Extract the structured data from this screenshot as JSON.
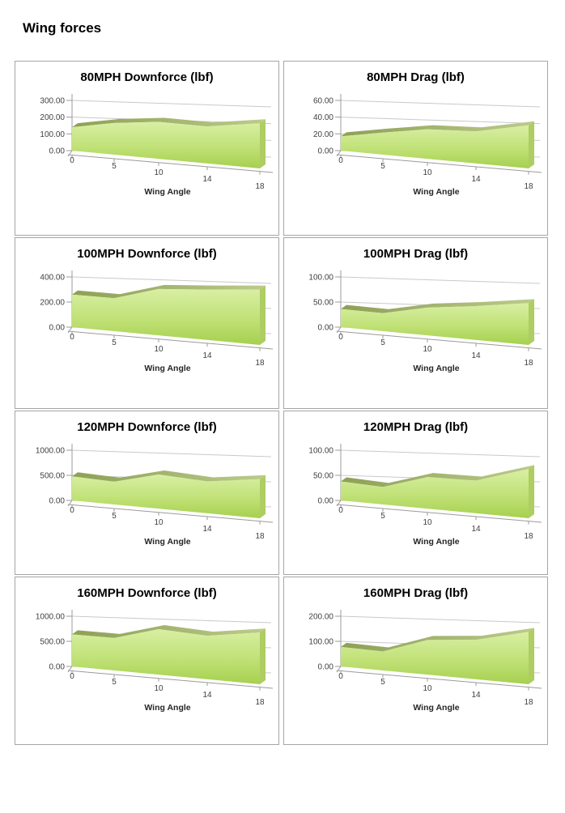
{
  "page": {
    "title": "Wing forces"
  },
  "colors": {
    "area_fill_light": "#d8efa3",
    "area_fill_mid": "#c0e176",
    "area_fill_dark": "#a6d04f",
    "top_band_dark": "#8da055",
    "top_band_light": "#bccb8a",
    "end_cap": "#aecd62",
    "gridline": "#c9c9c9",
    "axis": "#9b9b9b",
    "tick_text": "#3f3f3f",
    "label_text": "#262626",
    "cell_border": "#a6a6a6"
  },
  "chart_data": [
    {
      "type": "area",
      "title": "80MPH Downforce (lbf)",
      "xlabel": "Wing Angle",
      "categories": [
        0,
        5,
        10,
        14,
        18
      ],
      "values": [
        140,
        180,
        200,
        190,
        220
      ],
      "ylim": [
        0,
        300
      ],
      "ytick_labels": [
        "0.00",
        "100.00",
        "200.00",
        "300.00"
      ],
      "legend": "none",
      "grid": true
    },
    {
      "type": "area",
      "title": "80MPH Drag (lbf)",
      "xlabel": "Wing Angle",
      "categories": [
        0,
        5,
        10,
        14,
        18
      ],
      "values": [
        17,
        25,
        32,
        33,
        42
      ],
      "ylim": [
        0,
        60
      ],
      "ytick_labels": [
        "0.00",
        "20.00",
        "40.00",
        "60.00"
      ],
      "legend": "none",
      "grid": true
    },
    {
      "type": "area",
      "title": "100MPH Downforce (lbf)",
      "xlabel": "Wing Angle",
      "categories": [
        0,
        5,
        10,
        14,
        18
      ],
      "values": [
        260,
        250,
        335,
        345,
        360
      ],
      "ylim": [
        0,
        400
      ],
      "ytick_labels": [
        "0.00",
        "200.00",
        "400.00"
      ],
      "legend": "none",
      "grid": true
    },
    {
      "type": "area",
      "title": "100MPH Drag (lbf)",
      "xlabel": "Wing Angle",
      "categories": [
        0,
        5,
        10,
        14,
        18
      ],
      "values": [
        36,
        34,
        50,
        58,
        68
      ],
      "ylim": [
        0,
        100
      ],
      "ytick_labels": [
        "0.00",
        "50.00",
        "100.00"
      ],
      "legend": "none",
      "grid": true
    },
    {
      "type": "area",
      "title": "120MPH Downforce (lbf)",
      "xlabel": "Wing Angle",
      "categories": [
        0,
        5,
        10,
        14,
        18
      ],
      "values": [
        480,
        430,
        615,
        545,
        635
      ],
      "ylim": [
        0,
        1000
      ],
      "ytick_labels": [
        "0.00",
        "500.00",
        "1000.00"
      ],
      "legend": "none",
      "grid": true
    },
    {
      "type": "area",
      "title": "120MPH Drag (lbf)",
      "xlabel": "Wing Angle",
      "categories": [
        0,
        5,
        10,
        14,
        18
      ],
      "values": [
        38,
        33,
        57,
        56,
        80
      ],
      "ylim": [
        0,
        100
      ],
      "ytick_labels": [
        "0.00",
        "50.00",
        "100.00"
      ],
      "legend": "none",
      "grid": true
    },
    {
      "type": "area",
      "title": "160MPH Downforce (lbf)",
      "xlabel": "Wing Angle",
      "categories": [
        0,
        5,
        10,
        14,
        18
      ],
      "values": [
        640,
        615,
        820,
        745,
        840
      ],
      "ylim": [
        0,
        1000
      ],
      "ytick_labels": [
        "0.00",
        "500.00",
        "1000.00"
      ],
      "legend": "none",
      "grid": true
    },
    {
      "type": "area",
      "title": "160MPH Drag (lbf)",
      "xlabel": "Wing Angle",
      "categories": [
        0,
        5,
        10,
        14,
        18
      ],
      "values": [
        78,
        72,
        125,
        135,
        170
      ],
      "ylim": [
        0,
        200
      ],
      "ytick_labels": [
        "0.00",
        "100.00",
        "200.00"
      ],
      "legend": "none",
      "grid": true
    }
  ]
}
